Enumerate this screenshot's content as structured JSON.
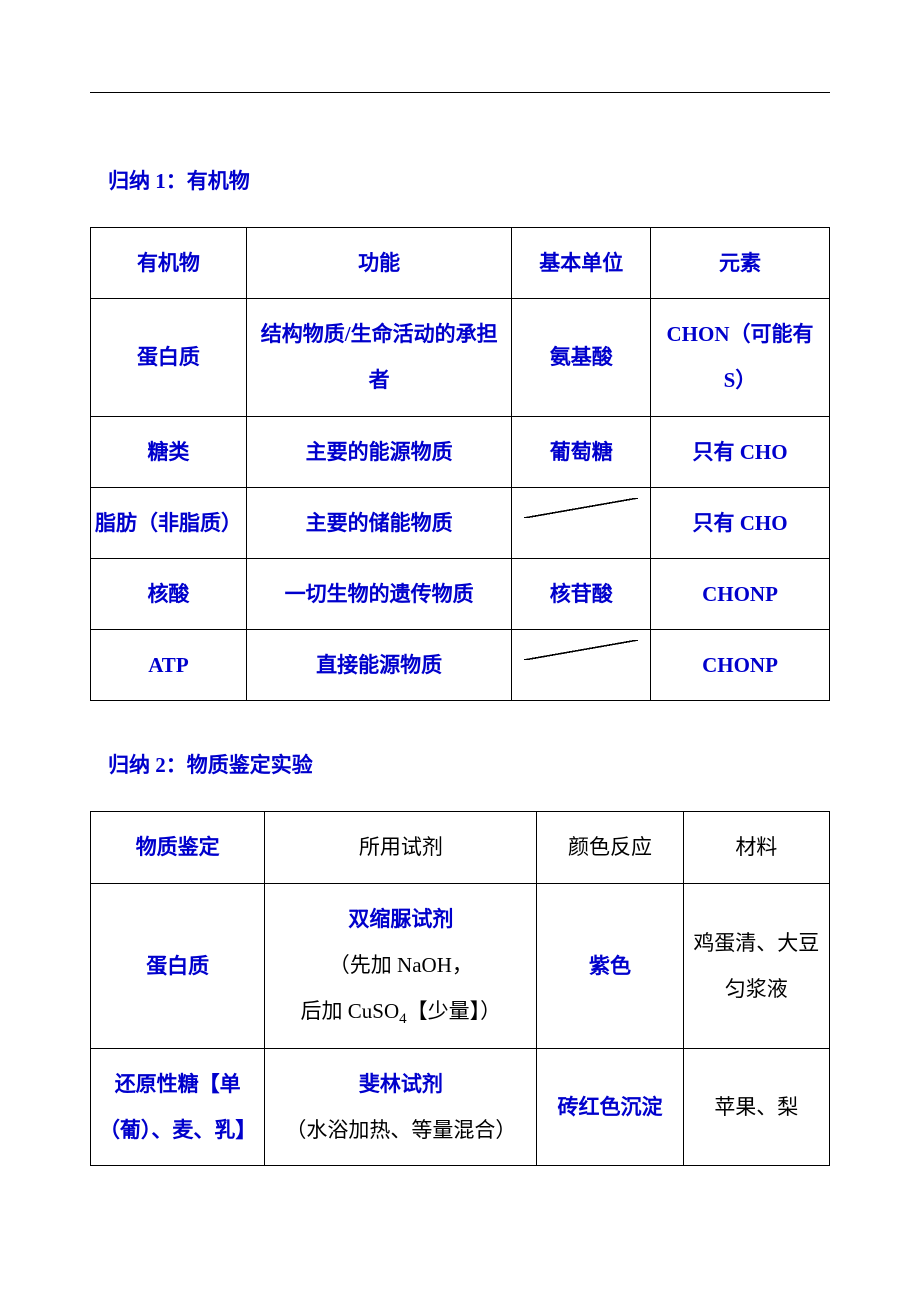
{
  "colors": {
    "primary_text": "#0000cc",
    "black_text": "#000000",
    "border": "#000000",
    "background": "#ffffff"
  },
  "typography": {
    "body_fontsize": 21,
    "font_family_cjk": "SimSun",
    "font_family_latin": "Times New Roman",
    "line_height": 2.2
  },
  "section1": {
    "title_prefix": "归纳 ",
    "title_number": "1",
    "title_suffix": "：有机物",
    "headers": {
      "col1": "有机物",
      "col2": "功能",
      "col3": "基本单位",
      "col4": "元素"
    },
    "rows": {
      "r1": {
        "name": "蛋白质",
        "function": "结构物质/生命活动的承担者",
        "unit": "氨基酸",
        "element_prefix": "CHON",
        "element_suffix": "（可能有 S）"
      },
      "r2": {
        "name": "糖类",
        "function": "主要的能源物质",
        "unit": "葡萄糖",
        "element_prefix": "只有 ",
        "element_en": "CHO"
      },
      "r3": {
        "name": "脂肪（非脂质）",
        "function": "主要的储能物质",
        "unit_diagonal": true,
        "element_prefix": "只有 ",
        "element_en": "CHO"
      },
      "r4": {
        "name": "核酸",
        "function": "一切生物的遗传物质",
        "unit": "核苷酸",
        "element_en": "CHONP"
      },
      "r5": {
        "name_en": "ATP",
        "function": "直接能源物质",
        "unit_diagonal": true,
        "element_en": "CHONP"
      }
    }
  },
  "section2": {
    "title_prefix": "归纳 ",
    "title_number": "2",
    "title_suffix": "：物质鉴定实验",
    "headers": {
      "col1": "物质鉴定",
      "col2": "所用试剂",
      "col3": "颜色反应",
      "col4": "材料"
    },
    "rows": {
      "r1": {
        "name": "蛋白质",
        "reagent_line1": "双缩脲试剂",
        "reagent_line2_prefix": "（先加 ",
        "reagent_line2_chem": "NaOH",
        "reagent_line2_suffix": "，",
        "reagent_line3_prefix": "后加 ",
        "reagent_line3_chem": "CuSO",
        "reagent_line3_sub": "4",
        "reagent_line3_suffix": "【少量】）",
        "color": "紫色",
        "material": "鸡蛋清、大豆匀浆液"
      },
      "r2": {
        "name": "还原性糖【单（葡）、麦、乳】",
        "reagent_line1": "斐林试剂",
        "reagent_line2": "（水浴加热、等量混合）",
        "color": "砖红色沉淀",
        "material": "苹果、梨"
      }
    }
  }
}
